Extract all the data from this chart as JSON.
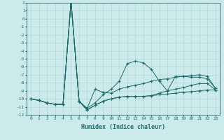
{
  "xlabel": "Humidex (Indice chaleur)",
  "x_values": [
    0,
    1,
    2,
    3,
    4,
    5,
    6,
    7,
    8,
    9,
    10,
    11,
    12,
    13,
    14,
    15,
    16,
    17,
    18,
    19,
    20,
    21,
    22,
    23
  ],
  "line1": [
    -10.0,
    -10.2,
    -10.5,
    -10.7,
    -10.7,
    2.2,
    -10.3,
    -11.2,
    -8.8,
    -9.2,
    -9.3,
    -8.8,
    -8.5,
    -8.3,
    -8.1,
    -7.8,
    -7.6,
    -7.5,
    -7.3,
    -7.2,
    -7.1,
    -7.0,
    -7.2,
    -8.7
  ],
  "line2": [
    -10.0,
    -10.2,
    -10.5,
    -10.7,
    -10.7,
    2.2,
    -10.3,
    -11.2,
    -10.5,
    -9.5,
    -8.8,
    -7.8,
    -5.6,
    -5.3,
    -5.5,
    -6.3,
    -7.8,
    -9.0,
    -7.2,
    -7.2,
    -7.3,
    -7.3,
    -7.5,
    -8.7
  ],
  "line3": [
    -10.0,
    -10.2,
    -10.5,
    -10.7,
    -10.7,
    2.2,
    -10.3,
    -11.4,
    -10.8,
    -10.3,
    -10.0,
    -9.8,
    -9.7,
    -9.7,
    -9.7,
    -9.6,
    -9.3,
    -9.0,
    -8.8,
    -8.6,
    -8.3,
    -8.1,
    -8.1,
    -8.9
  ],
  "line4": [
    -10.0,
    -10.2,
    -10.5,
    -10.7,
    -10.7,
    2.2,
    -10.3,
    -11.4,
    -10.8,
    -10.3,
    -10.0,
    -9.8,
    -9.7,
    -9.7,
    -9.7,
    -9.6,
    -9.5,
    -9.4,
    -9.3,
    -9.2,
    -9.1,
    -9.0,
    -8.9,
    -8.9
  ],
  "line_color": "#1a6b6b",
  "bg_color": "#cceaea",
  "grid_color": "#aad4d4",
  "ylim": [
    -12,
    2
  ],
  "xlim": [
    -0.5,
    23.5
  ]
}
